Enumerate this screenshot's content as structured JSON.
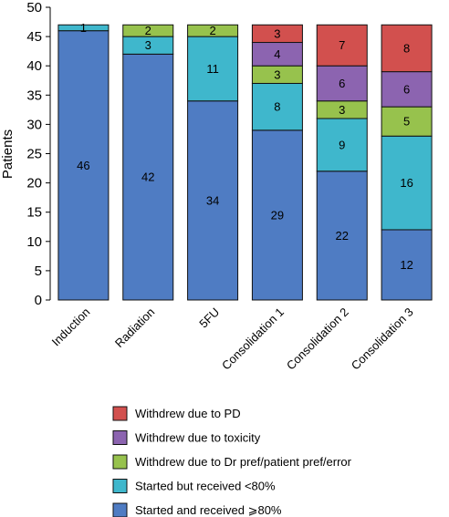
{
  "chart_data": {
    "type": "bar",
    "stacked": true,
    "title": "",
    "xlabel": "",
    "ylabel": "Patients",
    "ylim": [
      0,
      50
    ],
    "yticks": [
      0,
      5,
      10,
      15,
      20,
      25,
      30,
      35,
      40,
      45,
      50
    ],
    "grid": false,
    "legend_position": "bottom",
    "categories": [
      "Induction",
      "Radiation",
      "5FU",
      "Consolidation 1",
      "Consolidation 2",
      "Consolidation 3"
    ],
    "series": [
      {
        "name": "Started and received ⩾80%",
        "color": "#4f7cc3",
        "values": [
          46,
          42,
          34,
          29,
          22,
          12
        ]
      },
      {
        "name": "Started but received <80%",
        "color": "#3fb7cc",
        "values": [
          1,
          3,
          11,
          8,
          9,
          16
        ]
      },
      {
        "name": "Withdrew due to Dr pref/patient pref/error",
        "color": "#97c24d",
        "values": [
          0,
          2,
          2,
          3,
          3,
          5
        ]
      },
      {
        "name": "Withdrew due to toxicity",
        "color": "#8c64b0",
        "values": [
          0,
          0,
          0,
          4,
          6,
          6
        ]
      },
      {
        "name": "Withdrew due to PD",
        "color": "#d2504e",
        "values": [
          0,
          0,
          0,
          3,
          7,
          8
        ]
      }
    ],
    "legend_order": [
      4,
      3,
      2,
      1,
      0
    ]
  }
}
